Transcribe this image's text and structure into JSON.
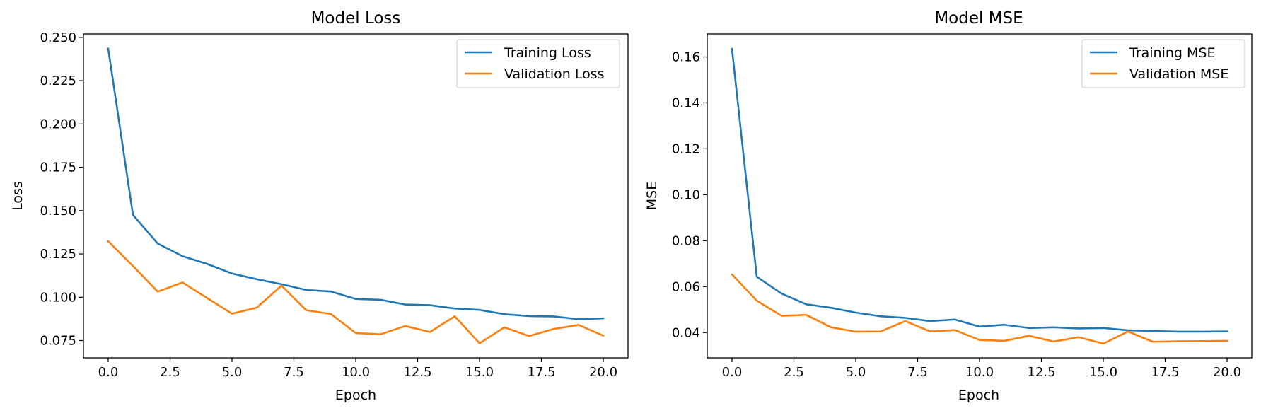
{
  "chart_data": [
    {
      "type": "line",
      "title": "Model Loss",
      "xlabel": "Epoch",
      "ylabel": "Loss",
      "xlim": [
        -1.0,
        21.0
      ],
      "ylim": [
        0.065,
        0.252
      ],
      "xticks": [
        0.0,
        2.5,
        5.0,
        7.5,
        10.0,
        12.5,
        15.0,
        17.5,
        20.0
      ],
      "xtick_labels": [
        "0.0",
        "2.5",
        "5.0",
        "7.5",
        "10.0",
        "12.5",
        "15.0",
        "17.5",
        "20.0"
      ],
      "yticks": [
        0.075,
        0.1,
        0.125,
        0.15,
        0.175,
        0.2,
        0.225,
        0.25
      ],
      "ytick_labels": [
        "0.075",
        "0.100",
        "0.125",
        "0.150",
        "0.175",
        "0.200",
        "0.225",
        "0.250"
      ],
      "grid": false,
      "legend_position": "top-right",
      "x": [
        0,
        1,
        2,
        3,
        4,
        5,
        6,
        7,
        8,
        9,
        10,
        11,
        12,
        13,
        14,
        15,
        16,
        17,
        18,
        19,
        20
      ],
      "series": [
        {
          "name": "Training Loss",
          "color": "#1f77b4",
          "values": [
            0.2435,
            0.1475,
            0.131,
            0.1237,
            0.1192,
            0.1137,
            0.1104,
            0.1075,
            0.1042,
            0.1033,
            0.099,
            0.0985,
            0.0958,
            0.0954,
            0.0935,
            0.0927,
            0.0902,
            0.0891,
            0.0889,
            0.0873,
            0.0878
          ]
        },
        {
          "name": "Validation Loss",
          "color": "#ff7f0e",
          "values": [
            0.1323,
            0.118,
            0.1032,
            0.1085,
            0.0995,
            0.0905,
            0.094,
            0.1067,
            0.0925,
            0.0903,
            0.0793,
            0.0786,
            0.0834,
            0.0799,
            0.089,
            0.0734,
            0.0826,
            0.0776,
            0.0817,
            0.084,
            0.0778
          ]
        }
      ]
    },
    {
      "type": "line",
      "title": "Model MSE",
      "xlabel": "Epoch",
      "ylabel": "MSE",
      "xlim": [
        -1.0,
        21.0
      ],
      "ylim": [
        0.029,
        0.17
      ],
      "xticks": [
        0.0,
        2.5,
        5.0,
        7.5,
        10.0,
        12.5,
        15.0,
        17.5,
        20.0
      ],
      "xtick_labels": [
        "0.0",
        "2.5",
        "5.0",
        "7.5",
        "10.0",
        "12.5",
        "15.0",
        "17.5",
        "20.0"
      ],
      "yticks": [
        0.04,
        0.06,
        0.08,
        0.1,
        0.12,
        0.14,
        0.16
      ],
      "ytick_labels": [
        "0.04",
        "0.06",
        "0.08",
        "0.10",
        "0.12",
        "0.14",
        "0.16"
      ],
      "grid": false,
      "legend_position": "top-right",
      "x": [
        0,
        1,
        2,
        3,
        4,
        5,
        6,
        7,
        8,
        9,
        10,
        11,
        12,
        13,
        14,
        15,
        16,
        17,
        18,
        19,
        20
      ],
      "series": [
        {
          "name": "Training MSE",
          "color": "#1f77b4",
          "values": [
            0.1635,
            0.0643,
            0.057,
            0.0523,
            0.0508,
            0.0487,
            0.0471,
            0.0464,
            0.045,
            0.0457,
            0.0426,
            0.0434,
            0.042,
            0.0423,
            0.0418,
            0.042,
            0.041,
            0.0407,
            0.0404,
            0.0404,
            0.0405
          ]
        },
        {
          "name": "Validation MSE",
          "color": "#ff7f0e",
          "values": [
            0.0653,
            0.0539,
            0.0473,
            0.0477,
            0.0423,
            0.0404,
            0.0405,
            0.045,
            0.0405,
            0.0411,
            0.0368,
            0.0364,
            0.0386,
            0.0361,
            0.038,
            0.0352,
            0.0405,
            0.036,
            0.0362,
            0.0363,
            0.0364
          ]
        }
      ]
    }
  ]
}
